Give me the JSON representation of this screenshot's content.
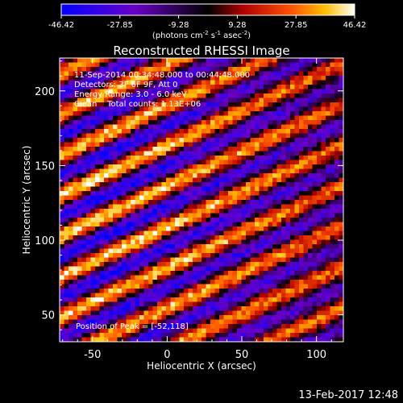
{
  "chart_data": {
    "type": "heatmap",
    "title": "Reconstructed RHESSI Image",
    "xlabel": "Heliocentric X (arcsec)",
    "ylabel": "Heliocentric Y (arcsec)",
    "xlim": [
      -72,
      118
    ],
    "ylim": [
      32,
      222
    ],
    "xticks": [
      -50,
      0,
      50,
      100
    ],
    "yticks": [
      50,
      100,
      150,
      200
    ],
    "colorbar": {
      "min": -46.42,
      "max": 46.42,
      "ticks": [
        "-46.42",
        "-27.85",
        "-9.28",
        "9.28",
        "27.85",
        "46.42"
      ],
      "unit_main": "(photons cm",
      "unit_exp1": "-2",
      "unit_mid": " s",
      "unit_exp2": "-1",
      "unit_mid2": " asec",
      "unit_exp3": "-2",
      "unit_end": ")"
    },
    "grid": false,
    "peak": [
      -52,
      118
    ],
    "stripe_model": {
      "angle_deg": 28,
      "period_arcsec": 24,
      "amplitude": 42,
      "noise": 10
    }
  },
  "info": {
    "time_range": "11-Sep-2014 00:34:48.000 to 00:44:48.000",
    "detectors": "Detectors: 3F 6F 9F, Att 0",
    "energy": "Energy Range: 3.0 - 6.0 keV",
    "clean": "Clean    Total counts: 1.13E+06",
    "peak": "Position of Peak = [-52,118]"
  },
  "footer": {
    "date": "13-Feb-2017 12:48"
  }
}
